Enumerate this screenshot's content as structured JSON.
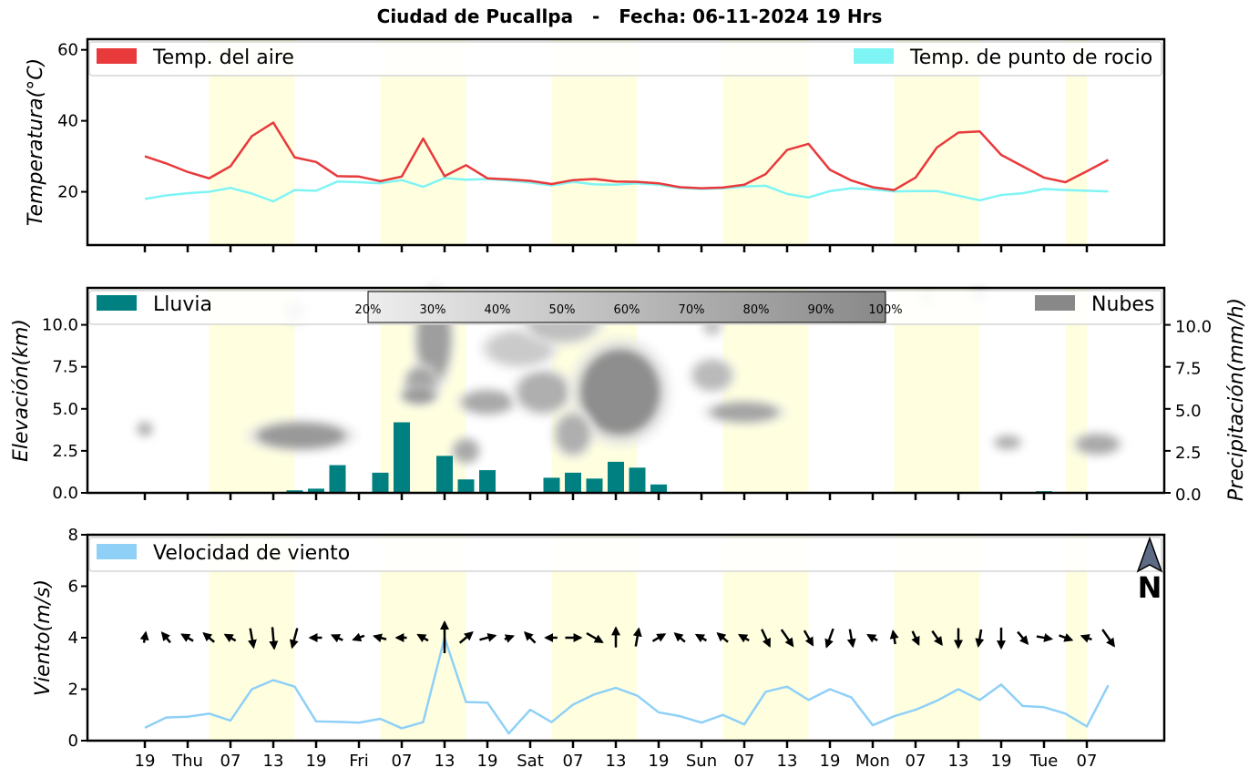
{
  "title": "Ciudad de Pucallpa   -   Fecha: 06-11-2024 19 Hrs",
  "x_axis": {
    "tick_labels": [
      "19",
      "Thu",
      "07",
      "13",
      "19",
      "Fri",
      "07",
      "13",
      "19",
      "Sat",
      "07",
      "13",
      "19",
      "Sun",
      "07",
      "13",
      "19",
      "Mon",
      "07",
      "13",
      "19",
      "Tue",
      "07"
    ]
  },
  "daylight_bands": [
    [
      3,
      7
    ],
    [
      11,
      15
    ],
    [
      19,
      23
    ],
    [
      27,
      31
    ],
    [
      35,
      39
    ],
    [
      43,
      44
    ]
  ],
  "colors": {
    "temp": "#e8393b",
    "dew": "#7ff4f4",
    "rain": "#008080",
    "clouds": "#888888",
    "wind": "#8fd0f7",
    "daylight": "#ffffe0",
    "north_arrow": "#5d6b85"
  },
  "chart_data": [
    {
      "type": "line",
      "panel": "temperatura",
      "ylabel": "Temperatura(°C)",
      "ylim": [
        5,
        63
      ],
      "yticks": [
        20,
        40,
        60
      ],
      "legend": [
        {
          "name": "Temp. del aire",
          "position": "top-left"
        },
        {
          "name": "Temp. de punto de rocio",
          "position": "top-right"
        }
      ],
      "series": [
        {
          "name": "Temp. del aire",
          "values": [
            30,
            28,
            25.6,
            23.8,
            27.2,
            35.7,
            39.5,
            29.7,
            28.4,
            24.4,
            24.3,
            23,
            24.3,
            35,
            24.4,
            27.5,
            23.8,
            23.5,
            23.1,
            22.2,
            23.3,
            23.6,
            22.9,
            22.8,
            22.4,
            21.3,
            21,
            21.2,
            22,
            25,
            31.8,
            33.5,
            26.2,
            23.2,
            21.3,
            20.5,
            24,
            32.5,
            36.7,
            37,
            30.4,
            27.2,
            24,
            22.7,
            25.8,
            29
          ]
        },
        {
          "name": "Temp. de punto de rocio",
          "values": [
            18,
            19,
            19.6,
            20,
            21.1,
            19.5,
            17.3,
            20.5,
            20.3,
            22.9,
            22.7,
            22.4,
            23.3,
            21.4,
            23.9,
            23.4,
            23.6,
            23.2,
            22.6,
            21.8,
            22.8,
            22.1,
            22,
            22.4,
            22,
            21.1,
            20.8,
            21,
            21.5,
            21.7,
            19.4,
            18.4,
            20.2,
            21,
            20.7,
            20.1,
            20.2,
            20.2,
            18.9,
            17.6,
            19.1,
            19.6,
            20.8,
            20.5,
            20.3,
            20.1
          ]
        }
      ]
    },
    {
      "type": "bar",
      "panel": "precipitacion_nubes",
      "ylabel": "Elevación(km)",
      "y2label": "Precipitación(mm/h)",
      "ylim": [
        0,
        12.2
      ],
      "yticks": [
        0.0,
        2.5,
        5.0,
        7.5,
        10.0
      ],
      "y2ticks": [
        0.0,
        2.5,
        5.0,
        7.5,
        10.0
      ],
      "legend": [
        {
          "name": "Lluvia",
          "position": "top-left"
        },
        {
          "name": "Nubes",
          "position": "top-right"
        }
      ],
      "colorbar_labels": [
        "20%",
        "30%",
        "40%",
        "50%",
        "60%",
        "70%",
        "80%",
        "90%",
        "100%"
      ],
      "series": [
        {
          "name": "Lluvia",
          "values": [
            0,
            0,
            0.05,
            0.05,
            0.05,
            0,
            0.05,
            0.15,
            0.25,
            1.65,
            0,
            1.2,
            4.2,
            0,
            2.2,
            0.8,
            1.35,
            0,
            0,
            0.9,
            1.2,
            0.85,
            1.85,
            1.5,
            0.5,
            0,
            0,
            0,
            0,
            0,
            0,
            0,
            0,
            0,
            0,
            0,
            0,
            0,
            0,
            0,
            0,
            0,
            0.1,
            0.05,
            0,
            0
          ]
        }
      ],
      "cloud_blobs": [
        {
          "x": 0,
          "y": 3.8,
          "rx": 0.35,
          "ry": 0.4,
          "intensity": 0.55
        },
        {
          "x": 7.3,
          "y": 3.4,
          "rx": 2.1,
          "ry": 0.8,
          "intensity": 0.75
        },
        {
          "x": 7,
          "y": 10.8,
          "rx": 0.5,
          "ry": 0.6,
          "intensity": 0.2
        },
        {
          "x": 13.5,
          "y": 9.2,
          "rx": 0.8,
          "ry": 2.6,
          "intensity": 0.7
        },
        {
          "x": 12.9,
          "y": 6.6,
          "rx": 0.7,
          "ry": 0.9,
          "intensity": 0.65
        },
        {
          "x": 12.8,
          "y": 5.8,
          "rx": 0.8,
          "ry": 0.5,
          "intensity": 0.75
        },
        {
          "x": 16,
          "y": 5.4,
          "rx": 1.2,
          "ry": 0.7,
          "intensity": 0.6
        },
        {
          "x": 18.6,
          "y": 6,
          "rx": 1.2,
          "ry": 1.2,
          "intensity": 0.55
        },
        {
          "x": 17.5,
          "y": 8.6,
          "rx": 1.5,
          "ry": 1.0,
          "intensity": 0.3
        },
        {
          "x": 19.5,
          "y": 10.1,
          "rx": 1.6,
          "ry": 1.1,
          "intensity": 0.4
        },
        {
          "x": 22.2,
          "y": 6,
          "rx": 1.9,
          "ry": 2.6,
          "intensity": 0.85
        },
        {
          "x": 20,
          "y": 3.5,
          "rx": 0.8,
          "ry": 1.2,
          "intensity": 0.55
        },
        {
          "x": 15,
          "y": 2.5,
          "rx": 0.6,
          "ry": 0.7,
          "intensity": 0.6
        },
        {
          "x": 26.5,
          "y": 7,
          "rx": 0.9,
          "ry": 0.9,
          "intensity": 0.45
        },
        {
          "x": 26.5,
          "y": 9.9,
          "rx": 0.4,
          "ry": 0.5,
          "intensity": 0.35
        },
        {
          "x": 28,
          "y": 4.8,
          "rx": 1.6,
          "ry": 0.6,
          "intensity": 0.65
        },
        {
          "x": 40.3,
          "y": 3,
          "rx": 0.6,
          "ry": 0.4,
          "intensity": 0.55
        },
        {
          "x": 44.5,
          "y": 2.9,
          "rx": 1.0,
          "ry": 0.6,
          "intensity": 0.6
        },
        {
          "x": 36.5,
          "y": 11.6,
          "rx": 0.3,
          "ry": 0.3,
          "intensity": 0.25
        },
        {
          "x": 39,
          "y": 11.8,
          "rx": 0.4,
          "ry": 0.3,
          "intensity": 0.25
        }
      ]
    },
    {
      "type": "line",
      "panel": "viento",
      "ylabel": "Viento(m/s)",
      "ylim": [
        0,
        8
      ],
      "yticks": [
        0,
        2,
        4,
        6,
        8
      ],
      "legend": [
        {
          "name": "Velocidad de viento",
          "position": "top-left"
        }
      ],
      "north_label": "N",
      "series": [
        {
          "name": "Velocidad de viento",
          "values": [
            0.5,
            0.9,
            0.93,
            1.05,
            0.78,
            2.0,
            2.35,
            2.1,
            0.75,
            0.73,
            0.7,
            0.85,
            0.48,
            0.72,
            4.0,
            1.5,
            1.48,
            0.28,
            1.2,
            0.72,
            1.4,
            1.8,
            2.05,
            1.75,
            1.1,
            0.95,
            0.7,
            1.0,
            0.63,
            1.9,
            2.1,
            1.58,
            2.0,
            1.68,
            0.6,
            0.95,
            1.2,
            1.55,
            2.0,
            1.58,
            2.18,
            1.35,
            1.3,
            1.05,
            0.55,
            2.15
          ]
        },
        {
          "name": "wind_direction_deg",
          "values": [
            10,
            320,
            300,
            310,
            300,
            170,
            175,
            195,
            270,
            295,
            250,
            285,
            270,
            300,
            0,
            50,
            75,
            70,
            315,
            270,
            90,
            120,
            0,
            10,
            60,
            310,
            300,
            310,
            300,
            155,
            145,
            150,
            200,
            170,
            300,
            350,
            155,
            145,
            180,
            190,
            180,
            140,
            100,
            110,
            290,
            145
          ]
        }
      ]
    }
  ]
}
